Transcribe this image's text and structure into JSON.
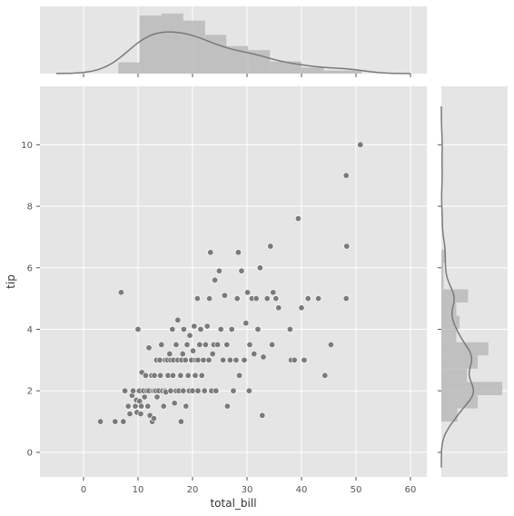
{
  "chart_data": {
    "type": "scatter",
    "title": "",
    "xlabel": "total_bill",
    "ylabel": "tip",
    "xlim": [
      -8,
      63
    ],
    "ylim": [
      -0.8,
      11.9
    ],
    "xticks": [
      0,
      10,
      20,
      30,
      40,
      50,
      60
    ],
    "yticks": [
      0,
      2,
      4,
      6,
      8,
      10
    ],
    "grid": true,
    "background": "#e5e5e5",
    "grid_color": "#ffffff",
    "point_color": "#7a7a7a",
    "hist_color": "#bababa",
    "kde_color": "#7a7a7a",
    "points": [
      [
        3.1,
        1.0
      ],
      [
        5.8,
        1.0
      ],
      [
        7.3,
        1.0
      ],
      [
        6.9,
        5.2
      ],
      [
        7.6,
        2.0
      ],
      [
        8.2,
        1.5
      ],
      [
        8.5,
        1.25
      ],
      [
        8.9,
        1.85
      ],
      [
        9.1,
        2.0
      ],
      [
        9.5,
        1.5
      ],
      [
        9.7,
        1.7
      ],
      [
        9.8,
        1.3
      ],
      [
        10.0,
        4.0
      ],
      [
        10.1,
        2.0
      ],
      [
        10.3,
        1.66
      ],
      [
        10.3,
        2.0
      ],
      [
        10.5,
        1.25
      ],
      [
        10.6,
        1.5
      ],
      [
        10.7,
        2.6
      ],
      [
        11.0,
        2.0
      ],
      [
        11.2,
        1.8
      ],
      [
        11.4,
        2.5
      ],
      [
        11.6,
        2.0
      ],
      [
        11.8,
        1.5
      ],
      [
        12.0,
        3.4
      ],
      [
        12.0,
        2.0
      ],
      [
        12.2,
        1.2
      ],
      [
        12.5,
        2.5
      ],
      [
        12.6,
        1.0
      ],
      [
        12.7,
        2.0
      ],
      [
        12.9,
        1.1
      ],
      [
        13.0,
        2.0
      ],
      [
        13.0,
        2.5
      ],
      [
        13.3,
        2.0
      ],
      [
        13.4,
        3.0
      ],
      [
        13.5,
        1.8
      ],
      [
        13.8,
        2.0
      ],
      [
        14.0,
        3.0
      ],
      [
        14.1,
        2.5
      ],
      [
        14.3,
        3.5
      ],
      [
        14.5,
        2.0
      ],
      [
        14.7,
        1.5
      ],
      [
        15.0,
        3.0
      ],
      [
        15.0,
        2.0
      ],
      [
        15.1,
        1.96
      ],
      [
        15.4,
        3.0
      ],
      [
        15.5,
        2.5
      ],
      [
        15.8,
        3.2
      ],
      [
        16.0,
        2.0
      ],
      [
        16.0,
        3.0
      ],
      [
        16.3,
        4.0
      ],
      [
        16.4,
        2.5
      ],
      [
        16.5,
        3.0
      ],
      [
        16.7,
        1.6
      ],
      [
        17.0,
        3.5
      ],
      [
        17.0,
        2.0
      ],
      [
        17.3,
        4.3
      ],
      [
        17.3,
        3.0
      ],
      [
        17.5,
        2.0
      ],
      [
        17.8,
        2.5
      ],
      [
        17.9,
        1.0
      ],
      [
        18.0,
        3.0
      ],
      [
        18.2,
        3.2
      ],
      [
        18.3,
        2.0
      ],
      [
        18.4,
        4.0
      ],
      [
        18.7,
        3.0
      ],
      [
        18.8,
        1.5
      ],
      [
        19.0,
        3.5
      ],
      [
        19.2,
        2.5
      ],
      [
        19.4,
        2.0
      ],
      [
        19.5,
        3.8
      ],
      [
        19.8,
        3.0
      ],
      [
        20.0,
        2.0
      ],
      [
        20.1,
        3.3
      ],
      [
        20.3,
        4.1
      ],
      [
        20.5,
        2.5
      ],
      [
        20.6,
        3.0
      ],
      [
        20.9,
        5.0
      ],
      [
        21.0,
        3.0
      ],
      [
        21.0,
        2.0
      ],
      [
        21.3,
        3.5
      ],
      [
        21.5,
        4.0
      ],
      [
        21.7,
        2.5
      ],
      [
        22.0,
        3.0
      ],
      [
        22.2,
        2.0
      ],
      [
        22.4,
        3.5
      ],
      [
        22.7,
        4.1
      ],
      [
        23.0,
        3.0
      ],
      [
        23.1,
        5.0
      ],
      [
        23.3,
        6.5
      ],
      [
        23.5,
        2.0
      ],
      [
        23.7,
        3.2
      ],
      [
        23.9,
        3.5
      ],
      [
        24.1,
        5.6
      ],
      [
        24.3,
        2.0
      ],
      [
        24.6,
        3.5
      ],
      [
        24.9,
        5.9
      ],
      [
        25.2,
        4.0
      ],
      [
        25.6,
        3.0
      ],
      [
        25.9,
        5.1
      ],
      [
        26.3,
        3.5
      ],
      [
        26.4,
        1.5
      ],
      [
        26.9,
        3.0
      ],
      [
        27.2,
        4.0
      ],
      [
        27.5,
        2.0
      ],
      [
        28.0,
        3.0
      ],
      [
        28.2,
        5.0
      ],
      [
        28.4,
        6.5
      ],
      [
        28.6,
        2.5
      ],
      [
        29.0,
        5.9
      ],
      [
        29.5,
        3.0
      ],
      [
        29.8,
        4.2
      ],
      [
        30.1,
        5.2
      ],
      [
        30.4,
        2.0
      ],
      [
        30.5,
        3.5
      ],
      [
        30.9,
        5.0
      ],
      [
        31.3,
        3.2
      ],
      [
        31.7,
        5.0
      ],
      [
        32.0,
        4.0
      ],
      [
        32.4,
        6.0
      ],
      [
        32.8,
        1.2
      ],
      [
        33.0,
        3.1
      ],
      [
        33.7,
        5.0
      ],
      [
        34.3,
        6.7
      ],
      [
        34.6,
        3.5
      ],
      [
        34.8,
        5.2
      ],
      [
        35.3,
        5.0
      ],
      [
        35.8,
        4.7
      ],
      [
        37.9,
        4.0
      ],
      [
        38.1,
        3.0
      ],
      [
        38.7,
        3.0
      ],
      [
        39.4,
        7.6
      ],
      [
        40.0,
        4.7
      ],
      [
        40.5,
        3.0
      ],
      [
        41.2,
        5.0
      ],
      [
        43.1,
        5.0
      ],
      [
        44.3,
        2.5
      ],
      [
        45.4,
        3.5
      ],
      [
        48.2,
        9.0
      ],
      [
        48.3,
        6.7
      ],
      [
        48.2,
        5.0
      ],
      [
        50.8,
        10.0
      ]
    ],
    "marginal_x": {
      "bin_edges": [
        6.4,
        10.3,
        14.3,
        18.3,
        22.3,
        26.2,
        30.2,
        34.2,
        40.0,
        44.1,
        51.0
      ],
      "density": [
        0.011,
        0.057,
        0.059,
        0.052,
        0.038,
        0.027,
        0.023,
        0.012,
        0.006,
        0.003
      ]
    },
    "marginal_y": {
      "bin_edges": [
        1.0,
        1.43,
        1.86,
        2.29,
        2.72,
        3.15,
        3.58,
        4.01,
        4.44,
        4.87,
        5.3,
        5.73,
        6.16,
        6.59
      ],
      "density": [
        0.15,
        0.34,
        0.57,
        0.24,
        0.34,
        0.44,
        0.14,
        0.17,
        0.14,
        0.25,
        0.02,
        0.02,
        0.04
      ]
    }
  }
}
